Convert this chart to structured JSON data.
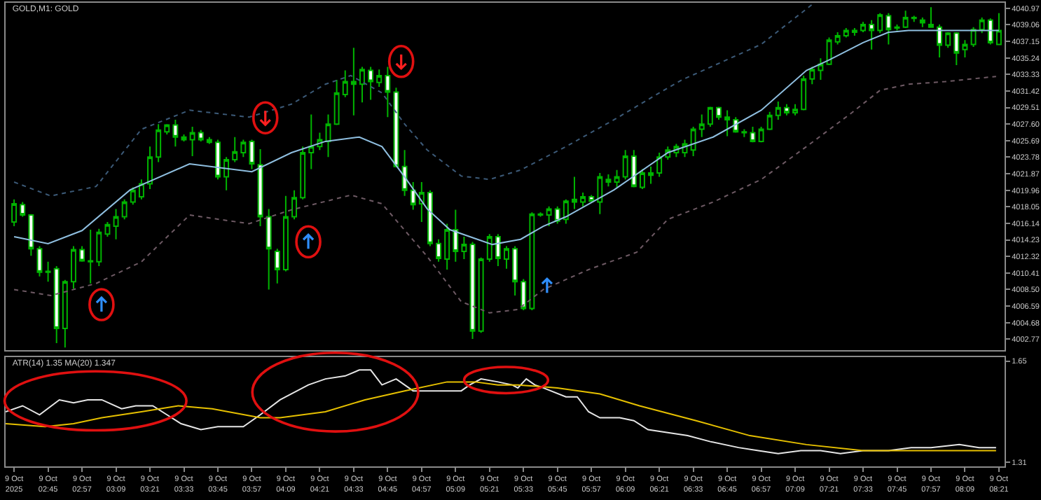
{
  "chart_data": [
    {
      "type": "candlestick",
      "title": "GOLD,M1: GOLD",
      "tick_labels": "y",
      "xlim": [
        "2025-10-09T02:30",
        "2025-10-09T08:23"
      ],
      "ylim": [
        4001.5,
        4041.6
      ],
      "yticks": [
        4040.97,
        4039.06,
        4037.15,
        4035.24,
        4033.33,
        4031.42,
        4029.51,
        {
          "value": 4027.6,
          "label": "4027.60"
        },
        4025.69,
        4023.78,
        4021.87,
        4019.96,
        4018.05,
        4016.14,
        4014.23,
        4012.32,
        4010.41,
        {
          "value": 4008.5,
          "label": "4008.50"
        },
        4006.59,
        4004.68,
        4002.77
      ],
      "x": [
        "2025-10-09T02:33",
        "2025-10-09T02:36",
        "2025-10-09T02:39",
        "2025-10-09T02:42",
        "2025-10-09T02:45",
        "2025-10-09T02:48",
        "2025-10-09T02:51",
        "2025-10-09T02:54",
        "2025-10-09T02:57",
        "2025-10-09T03:00",
        "2025-10-09T03:03",
        "2025-10-09T03:06",
        "2025-10-09T03:09",
        "2025-10-09T03:12",
        "2025-10-09T03:15",
        "2025-10-09T03:18",
        "2025-10-09T03:21",
        "2025-10-09T03:24",
        "2025-10-09T03:27",
        "2025-10-09T03:30",
        "2025-10-09T03:33",
        "2025-10-09T03:36",
        "2025-10-09T03:39",
        "2025-10-09T03:42",
        "2025-10-09T03:45",
        "2025-10-09T03:48",
        "2025-10-09T03:51",
        "2025-10-09T03:54",
        "2025-10-09T03:57",
        "2025-10-09T04:00",
        "2025-10-09T04:03",
        "2025-10-09T04:06",
        "2025-10-09T04:09",
        "2025-10-09T04:12",
        "2025-10-09T04:15",
        "2025-10-09T04:18",
        "2025-10-09T04:21",
        "2025-10-09T04:24",
        "2025-10-09T04:27",
        "2025-10-09T04:30",
        "2025-10-09T04:33",
        "2025-10-09T04:36",
        "2025-10-09T04:39",
        "2025-10-09T04:42",
        "2025-10-09T04:45",
        "2025-10-09T04:48",
        "2025-10-09T04:51",
        "2025-10-09T04:54",
        "2025-10-09T04:57",
        "2025-10-09T05:00",
        "2025-10-09T05:03",
        "2025-10-09T05:06",
        "2025-10-09T05:09",
        "2025-10-09T05:12",
        "2025-10-09T05:15",
        "2025-10-09T05:18",
        "2025-10-09T05:21",
        "2025-10-09T05:24",
        "2025-10-09T05:27",
        "2025-10-09T05:30",
        "2025-10-09T05:33",
        "2025-10-09T05:36",
        "2025-10-09T05:39",
        "2025-10-09T05:42",
        "2025-10-09T05:45",
        "2025-10-09T05:48",
        "2025-10-09T05:51",
        "2025-10-09T05:54",
        "2025-10-09T05:57",
        "2025-10-09T06:00",
        "2025-10-09T06:03",
        "2025-10-09T06:06",
        "2025-10-09T06:09",
        "2025-10-09T06:12",
        "2025-10-09T06:15",
        "2025-10-09T06:18",
        "2025-10-09T06:21",
        "2025-10-09T06:24",
        "2025-10-09T06:27",
        "2025-10-09T06:30",
        "2025-10-09T06:33",
        "2025-10-09T06:36",
        "2025-10-09T06:39",
        "2025-10-09T06:42",
        "2025-10-09T06:45",
        "2025-10-09T06:48",
        "2025-10-09T06:51",
        "2025-10-09T06:54",
        "2025-10-09T06:57",
        "2025-10-09T07:00",
        "2025-10-09T07:03",
        "2025-10-09T07:06",
        "2025-10-09T07:09",
        "2025-10-09T07:12",
        "2025-10-09T07:15",
        "2025-10-09T07:18",
        "2025-10-09T07:21",
        "2025-10-09T07:24",
        "2025-10-09T07:27",
        "2025-10-09T07:30",
        "2025-10-09T07:33",
        "2025-10-09T07:36",
        "2025-10-09T07:39",
        "2025-10-09T07:42",
        "2025-10-09T07:45",
        "2025-10-09T07:48",
        "2025-10-09T07:51",
        "2025-10-09T07:54",
        "2025-10-09T07:57",
        "2025-10-09T08:00",
        "2025-10-09T08:03",
        "2025-10-09T08:06",
        "2025-10-09T08:09",
        "2025-10-09T08:12",
        "2025-10-09T08:15",
        "2025-10-09T08:18",
        "2025-10-09T08:21"
      ],
      "ohlc": [
        [
          4016.3,
          4018.9,
          4015.8,
          4018.4
        ],
        [
          4018.3,
          4018.6,
          4016.9,
          4017.1
        ],
        [
          4017.1,
          4017.2,
          4012.4,
          4013.2
        ],
        [
          4013.2,
          4013.5,
          4010.0,
          4010.5
        ],
        [
          4010.6,
          4011.7,
          4009.4,
          4010.5
        ],
        [
          4010.9,
          4011.2,
          4002.3,
          4004.0
        ],
        [
          4004.0,
          4009.6,
          4001.8,
          4009.4
        ],
        [
          4009.4,
          4013.5,
          4008.6,
          4013.1
        ],
        [
          4013.1,
          4013.5,
          4011.7,
          4011.8
        ],
        [
          4011.8,
          4015.4,
          4009.2,
          4011.7
        ],
        [
          4011.7,
          4015.5,
          4011.2,
          4015.1
        ],
        [
          4014.9,
          4016.3,
          4014.6,
          4016.0
        ],
        [
          4015.8,
          4017.8,
          4014.3,
          4016.9
        ],
        [
          4016.9,
          4018.9,
          4016.6,
          4018.6
        ],
        [
          4018.6,
          4020.3,
          4018.3,
          4019.96
        ],
        [
          4019.2,
          4021.2,
          4018.9,
          4020.7
        ],
        [
          4020.7,
          4025.0,
          4020.1,
          4023.8
        ],
        [
          4023.8,
          4027.6,
          4023.2,
          4026.9
        ],
        [
          4026.7,
          4027.6,
          4026.4,
          4027.5
        ],
        [
          4027.5,
          4028.1,
          4025.0,
          4026.1
        ],
        [
          4026.1,
          4026.4,
          4025.6,
          4025.8
        ],
        [
          4025.8,
          4027.3,
          4023.9,
          4026.6
        ],
        [
          4026.6,
          4026.9,
          4025.6,
          4025.8
        ],
        [
          4025.8,
          4026.1,
          4025.3,
          4025.5
        ],
        [
          4025.5,
          4025.8,
          4021.2,
          4021.5
        ],
        [
          4021.5,
          4023.8,
          4019.96,
          4023.5
        ],
        [
          4023.5,
          4026.1,
          4023.2,
          4024.4
        ],
        [
          4024.3,
          4025.8,
          4023.8,
          4025.5
        ],
        [
          4025.6,
          4025.8,
          4022.4,
          4023.0
        ],
        [
          4022.9,
          4024.7,
          4015.8,
          4016.9
        ],
        [
          4016.9,
          4017.8,
          4008.5,
          4013.2
        ],
        [
          4012.9,
          4013.2,
          4009.2,
          4010.8
        ],
        [
          4010.8,
          4019.3,
          4010.6,
          4016.9
        ],
        [
          4016.9,
          4019.96,
          4016.6,
          4019.1
        ],
        [
          4019.1,
          4025.0,
          4018.9,
          4024.3
        ],
        [
          4024.3,
          4028.7,
          4022.4,
          4025.0
        ],
        [
          4025.0,
          4026.6,
          4024.6,
          4025.8
        ],
        [
          4025.6,
          4028.7,
          4023.8,
          4027.6
        ],
        [
          4027.6,
          4032.7,
          4027.5,
          4031.2
        ],
        [
          4031.0,
          4033.8,
          4030.7,
          4032.5
        ],
        [
          4032.5,
          4036.4,
          4028.6,
          4032.2
        ],
        [
          4032.2,
          4034.2,
          4030.1,
          4033.9
        ],
        [
          4033.8,
          4034.2,
          4030.4,
          4032.5
        ],
        [
          4032.4,
          4033.9,
          4031.9,
          4033.2
        ],
        [
          4033.2,
          4034.2,
          4028.4,
          4031.3
        ],
        [
          4031.3,
          4031.8,
          4022.6,
          4022.7
        ],
        [
          4022.7,
          4024.6,
          4019.3,
          4019.96
        ],
        [
          4019.96,
          4020.9,
          4017.7,
          4018.3
        ],
        [
          4018.4,
          4020.9,
          4016.3,
          4019.7
        ],
        [
          4019.7,
          4019.96,
          4013.5,
          4013.8
        ],
        [
          4013.8,
          4014.3,
          4011.7,
          4012.1
        ],
        [
          4012.0,
          4016.1,
          4010.8,
          4015.4
        ],
        [
          4015.4,
          4017.7,
          4011.7,
          4012.9
        ],
        [
          4012.9,
          4014.6,
          4012.0,
          4013.7
        ],
        [
          4013.7,
          4014.0,
          4002.8,
          4003.7
        ],
        [
          4003.7,
          4012.2,
          4003.5,
          4012.0
        ],
        [
          4012.0,
          4014.9,
          4011.7,
          4014.6
        ],
        [
          4014.6,
          4014.9,
          4011.2,
          4012.1
        ],
        [
          4012.0,
          4013.5,
          4010.9,
          4013.2
        ],
        [
          4013.2,
          4013.5,
          4007.8,
          4009.4
        ],
        [
          4009.4,
          4009.7,
          4006.1,
          4006.3
        ],
        [
          4006.3,
          4017.4,
          4006.1,
          4017.2
        ],
        [
          4017.2,
          4017.4,
          4016.9,
          4017.1
        ],
        [
          4017.1,
          4018.1,
          4015.8,
          4017.8
        ],
        [
          4017.8,
          4018.1,
          4016.1,
          4016.4
        ],
        [
          4016.6,
          4018.9,
          4016.1,
          4018.7
        ],
        [
          4018.6,
          4021.5,
          4017.8,
          4018.9
        ],
        [
          4018.6,
          4019.7,
          4018.1,
          4019.2
        ],
        [
          4019.2,
          4019.4,
          4018.6,
          4018.7
        ],
        [
          4018.6,
          4021.96,
          4017.2,
          4021.5
        ],
        [
          4021.2,
          4021.8,
          4020.4,
          4020.9
        ],
        [
          4020.9,
          4022.3,
          4020.3,
          4021.5
        ],
        [
          4021.5,
          4024.6,
          4021.2,
          4023.9
        ],
        [
          4023.9,
          4024.6,
          4020.3,
          4020.4
        ],
        [
          4020.3,
          4022.4,
          4020.1,
          4021.96
        ],
        [
          4021.7,
          4022.7,
          4020.7,
          4021.96
        ],
        [
          4021.96,
          4024.3,
          4021.5,
          4023.8
        ],
        [
          4023.8,
          4025.0,
          4023.5,
          4024.6
        ],
        [
          4024.3,
          4025.3,
          4023.8,
          4025.0
        ],
        [
          4024.3,
          4025.8,
          4023.8,
          4025.3
        ],
        [
          4024.6,
          4027.3,
          4023.9,
          4027.0
        ],
        [
          4027.0,
          4028.7,
          4026.1,
          4027.6
        ],
        [
          4027.6,
          4029.6,
          4027.3,
          4029.5
        ],
        [
          4029.5,
          4029.6,
          4028.1,
          4028.4
        ],
        [
          4028.4,
          4029.2,
          4026.2,
          4028.1
        ],
        [
          4028.1,
          4028.4,
          4026.6,
          4026.7
        ],
        [
          4026.7,
          4027.0,
          4026.1,
          4026.6
        ],
        [
          4026.6,
          4027.3,
          4025.5,
          4025.6
        ],
        [
          4025.6,
          4027.3,
          4025.5,
          4027.0
        ],
        [
          4027.0,
          4029.0,
          4026.9,
          4028.6
        ],
        [
          4028.6,
          4030.2,
          4028.1,
          4029.5
        ],
        [
          4029.5,
          4029.9,
          4028.6,
          4028.9
        ],
        [
          4028.9,
          4029.9,
          4028.6,
          4029.3
        ],
        [
          4029.3,
          4033.2,
          4029.2,
          4032.8
        ],
        [
          4032.8,
          4034.2,
          4032.2,
          4033.9
        ],
        [
          4033.8,
          4035.2,
          4032.7,
          4034.5
        ],
        [
          4034.5,
          4037.6,
          4034.4,
          4037.3
        ],
        [
          4037.1,
          4038.2,
          4036.8,
          4037.8
        ],
        [
          4037.8,
          4038.7,
          4037.6,
          4038.4
        ],
        [
          4038.2,
          4038.7,
          4037.8,
          4038.4
        ],
        [
          4038.4,
          4039.4,
          4038.2,
          4039.1
        ],
        [
          4039.1,
          4039.6,
          4036.2,
          4038.4
        ],
        [
          4038.4,
          4040.4,
          4038.1,
          4040.2
        ],
        [
          4040.1,
          4040.4,
          4036.8,
          4038.5
        ],
        [
          4038.7,
          4039.1,
          4038.4,
          4038.8
        ],
        [
          4038.8,
          4040.7,
          4038.7,
          4039.9
        ],
        [
          4039.9,
          4040.1,
          4039.4,
          4039.8
        ],
        [
          4039.6,
          4039.9,
          4038.8,
          4039.3
        ],
        [
          4039.1,
          4041.1,
          4038.8,
          4038.8
        ],
        [
          4038.8,
          4039.1,
          4035.3,
          4036.7
        ],
        [
          4036.7,
          4038.2,
          4036.4,
          4038.1
        ],
        [
          4038.1,
          4038.2,
          4034.4,
          4035.8
        ],
        [
          4036.2,
          4037.3,
          4035.3,
          4036.8
        ],
        [
          4036.8,
          4038.8,
          4036.5,
          4038.5
        ],
        [
          4038.5,
          4039.9,
          4038.1,
          4039.6
        ],
        [
          4039.6,
          4039.8,
          4036.8,
          4037.0
        ],
        [
          4036.8,
          4040.4,
          4036.7,
          4038.4
        ]
      ],
      "series": [
        {
          "type": "line",
          "color": "#8fbfe0",
          "line_style": "solid",
          "x": [
            "2025-10-09T02:33",
            "2025-10-09T02:45",
            "2025-10-09T02:57",
            "2025-10-09T03:14",
            "2025-10-09T03:35",
            "2025-10-09T03:57",
            "2025-10-09T04:11",
            "2025-10-09T04:23",
            "2025-10-09T04:35",
            "2025-10-09T04:43",
            "2025-10-09T04:51",
            "2025-10-09T04:59",
            "2025-10-09T05:07",
            "2025-10-09T05:22",
            "2025-10-09T05:32",
            "2025-10-09T05:40",
            "2025-10-09T05:48",
            "2025-10-09T06:05",
            "2025-10-09T06:24",
            "2025-10-09T06:40",
            "2025-10-09T06:57",
            "2025-10-09T07:13",
            "2025-10-09T07:21",
            "2025-10-09T07:33",
            "2025-10-09T07:42",
            "2025-10-09T07:49",
            "2025-10-09T08:21"
          ],
          "values": [
            4014.6,
            4013.8,
            4015.3,
            4020.0,
            4023.0,
            4022.1,
            4024.3,
            4025.6,
            4026.1,
            4025.0,
            4021.5,
            4017.8,
            4015.4,
            4013.7,
            4014.3,
            4015.8,
            4016.9,
            4020.0,
            4024.3,
            4026.1,
            4029.2,
            4033.8,
            4035.0,
            4037.0,
            4038.2,
            4038.4,
            4038.4
          ]
        },
        {
          "type": "line",
          "color": "#3c5a78",
          "line_style": "dotted",
          "x": [
            "2025-10-09T02:33",
            "2025-10-09T02:46",
            "2025-10-09T03:02",
            "2025-10-09T03:18",
            "2025-10-09T03:35",
            "2025-10-09T03:56",
            "2025-10-09T04:11",
            "2025-10-09T04:23",
            "2025-10-09T04:32",
            "2025-10-09T04:43",
            "2025-10-09T04:51",
            "2025-10-09T04:59",
            "2025-10-09T05:11",
            "2025-10-09T05:21",
            "2025-10-09T05:32",
            "2025-10-09T05:48",
            "2025-10-09T06:05",
            "2025-10-09T06:21",
            "2025-10-09T06:29",
            "2025-10-09T06:57",
            "2025-10-09T07:15"
          ],
          "values": [
            4020.9,
            4019.3,
            4020.4,
            4027.0,
            4029.2,
            4028.4,
            4029.9,
            4032.2,
            4033.2,
            4031.2,
            4027.6,
            4024.6,
            4021.6,
            4021.2,
            4022.3,
            4025.0,
            4028.1,
            4031.2,
            4032.7,
            4036.8,
            4041.4
          ]
        },
        {
          "type": "line",
          "color": "#6e5a64",
          "line_style": "dotted",
          "x": [
            "2025-10-09T02:33",
            "2025-10-09T02:46",
            "2025-10-09T03:02",
            "2025-10-09T03:18",
            "2025-10-09T03:35",
            "2025-10-09T03:56",
            "2025-10-09T04:11",
            "2025-10-09T04:32",
            "2025-10-09T04:43",
            "2025-10-09T04:59",
            "2025-10-09T05:11",
            "2025-10-09T05:21",
            "2025-10-09T05:31",
            "2025-10-09T05:40",
            "2025-10-09T05:56",
            "2025-10-09T06:13",
            "2025-10-09T06:24",
            "2025-10-09T06:40",
            "2025-10-09T06:57",
            "2025-10-09T07:13",
            "2025-10-09T07:29",
            "2025-10-09T07:39",
            "2025-10-09T07:49",
            "2025-10-09T08:02",
            "2025-10-09T08:20"
          ],
          "values": [
            4008.5,
            4007.8,
            4009.2,
            4011.7,
            4017.1,
            4016.1,
            4017.7,
            4019.4,
            4018.4,
            4012.3,
            4007.1,
            4005.8,
            4006.2,
            4008.5,
            4010.8,
            4012.8,
            4016.6,
            4018.6,
            4021.2,
            4025.0,
            4028.9,
            4031.5,
            4032.2,
            4032.5,
            4033.1
          ]
        }
      ]
    },
    {
      "type": "line",
      "title": "ATR(14) 1.35 MA(20) 1.347",
      "xlim": [
        "2025-10-09T02:30",
        "2025-10-09T08:23"
      ],
      "ylim": [
        1.297,
        1.663
      ],
      "yticks": [
        1.65,
        1.31
      ],
      "xticks": [
        {
          "value": "2025-10-09T02:33",
          "label": "9 Oct 2025"
        },
        {
          "value": "2025-10-09T02:45",
          "label": "9 Oct 02:45"
        },
        {
          "value": "2025-10-09T02:57",
          "label": "9 Oct 02:57"
        },
        {
          "value": "2025-10-09T03:09",
          "label": "9 Oct 03:09"
        },
        {
          "value": "2025-10-09T03:21",
          "label": "9 Oct 03:21"
        },
        {
          "value": "2025-10-09T03:33",
          "label": "9 Oct 03:33"
        },
        {
          "value": "2025-10-09T03:45",
          "label": "9 Oct 03:45"
        },
        {
          "value": "2025-10-09T03:57",
          "label": "9 Oct 03:57"
        },
        {
          "value": "2025-10-09T04:09",
          "label": "9 Oct 04:09"
        },
        {
          "value": "2025-10-09T04:21",
          "label": "9 Oct 04:21"
        },
        {
          "value": "2025-10-09T04:33",
          "label": "9 Oct 04:33"
        },
        {
          "value": "2025-10-09T04:45",
          "label": "9 Oct 04:45"
        },
        {
          "value": "2025-10-09T04:57",
          "label": "9 Oct 04:57"
        },
        {
          "value": "2025-10-09T05:09",
          "label": "9 Oct 05:09"
        },
        {
          "value": "2025-10-09T05:21",
          "label": "9 Oct 05:21"
        },
        {
          "value": "2025-10-09T05:33",
          "label": "9 Oct 05:33"
        },
        {
          "value": "2025-10-09T05:45",
          "label": "9 Oct 05:45"
        },
        {
          "value": "2025-10-09T05:57",
          "label": "9 Oct 05:57"
        },
        {
          "value": "2025-10-09T06:09",
          "label": "9 Oct 06:09"
        },
        {
          "value": "2025-10-09T06:21",
          "label": "9 Oct 06:21"
        },
        {
          "value": "2025-10-09T06:33",
          "label": "9 Oct 06:33"
        },
        {
          "value": "2025-10-09T06:45",
          "label": "9 Oct 06:45"
        },
        {
          "value": "2025-10-09T06:57",
          "label": "9 Oct 06:57"
        },
        {
          "value": "2025-10-09T07:09",
          "label": "9 Oct 07:09"
        },
        {
          "value": "2025-10-09T07:21",
          "label": "9 Oct 07:21"
        },
        {
          "value": "2025-10-09T07:33",
          "label": "9 Oct 07:33"
        },
        {
          "value": "2025-10-09T07:45",
          "label": "9 Oct 07:45"
        },
        {
          "value": "2025-10-09T07:57",
          "label": "9 Oct 07:57"
        },
        {
          "value": "2025-10-09T08:09",
          "label": "9 Oct 08:09"
        },
        {
          "value": "2025-10-09T08:21",
          "label": "9 Oct 08:21"
        }
      ],
      "series": [
        {
          "color": "#e6e6e6",
          "x": [
            "2025-10-09T02:30",
            "2025-10-09T02:36",
            "2025-10-09T02:42",
            "2025-10-09T02:49",
            "2025-10-09T02:54",
            "2025-10-09T02:59",
            "2025-10-09T03:04",
            "2025-10-09T03:11",
            "2025-10-09T03:16",
            "2025-10-09T03:22",
            "2025-10-09T03:27",
            "2025-10-09T03:32",
            "2025-10-09T03:39",
            "2025-10-09T03:45",
            "2025-10-09T03:54",
            "2025-10-09T04:00",
            "2025-10-09T04:07",
            "2025-10-09T04:17",
            "2025-10-09T04:23",
            "2025-10-09T04:30",
            "2025-10-09T04:35",
            "2025-10-09T04:39",
            "2025-10-09T04:43",
            "2025-10-09T04:48",
            "2025-10-09T04:54",
            "2025-10-09T05:11",
            "2025-10-09T05:14",
            "2025-10-09T05:18",
            "2025-10-09T05:24",
            "2025-10-09T05:29",
            "2025-10-09T05:31",
            "2025-10-09T05:34",
            "2025-10-09T05:37",
            "2025-10-09T05:40",
            "2025-10-09T05:48",
            "2025-10-09T05:52",
            "2025-10-09T05:56",
            "2025-10-09T06:00",
            "2025-10-09T06:07",
            "2025-10-09T06:12",
            "2025-10-09T06:17",
            "2025-10-09T06:24",
            "2025-10-09T06:31",
            "2025-10-09T06:39",
            "2025-10-09T06:49",
            "2025-10-09T06:56",
            "2025-10-09T07:03",
            "2025-10-09T07:11",
            "2025-10-09T07:18",
            "2025-10-09T07:25",
            "2025-10-09T07:33",
            "2025-10-09T07:42",
            "2025-10-09T07:50",
            "2025-10-09T07:57",
            "2025-10-09T08:07",
            "2025-10-09T08:14",
            "2025-10-09T08:20"
          ],
          "values": [
            1.48,
            1.5,
            1.47,
            1.52,
            1.51,
            1.52,
            1.52,
            1.49,
            1.5,
            1.5,
            1.47,
            1.44,
            1.42,
            1.43,
            1.43,
            1.47,
            1.52,
            1.57,
            1.59,
            1.6,
            1.62,
            1.62,
            1.57,
            1.59,
            1.55,
            1.55,
            1.57,
            1.59,
            1.58,
            1.57,
            1.56,
            1.59,
            1.57,
            1.56,
            1.53,
            1.53,
            1.48,
            1.46,
            1.46,
            1.45,
            1.42,
            1.41,
            1.4,
            1.38,
            1.36,
            1.35,
            1.34,
            1.35,
            1.35,
            1.34,
            1.35,
            1.35,
            1.36,
            1.36,
            1.37,
            1.36,
            1.36
          ]
        },
        {
          "color": "#e6c000",
          "x": [
            "2025-10-09T02:30",
            "2025-10-09T02:44",
            "2025-10-09T02:54",
            "2025-10-09T03:04",
            "2025-10-09T03:18",
            "2025-10-09T03:31",
            "2025-10-09T03:43",
            "2025-10-09T04:00",
            "2025-10-09T04:07",
            "2025-10-09T04:23",
            "2025-10-09T04:37",
            "2025-10-09T04:51",
            "2025-10-09T05:06",
            "2025-10-09T05:16",
            "2025-10-09T05:24",
            "2025-10-09T05:31",
            "2025-10-09T05:45",
            "2025-10-09T06:00",
            "2025-10-09T06:14",
            "2025-10-09T06:34",
            "2025-10-09T06:53",
            "2025-10-09T07:13",
            "2025-10-09T07:33",
            "2025-10-09T07:52",
            "2025-10-09T08:12",
            "2025-10-09T08:20"
          ],
          "values": [
            1.44,
            1.43,
            1.44,
            1.46,
            1.48,
            1.5,
            1.49,
            1.46,
            1.46,
            1.48,
            1.52,
            1.55,
            1.58,
            1.58,
            1.57,
            1.57,
            1.56,
            1.54,
            1.5,
            1.45,
            1.4,
            1.37,
            1.35,
            1.35,
            1.35,
            1.35
          ]
        }
      ]
    }
  ]
}
